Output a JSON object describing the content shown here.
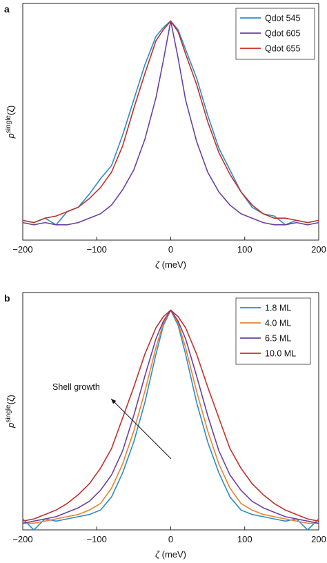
{
  "chart_data": [
    {
      "panel_label": "a",
      "type": "line",
      "xlabel_symbol": "ζ",
      "xlabel_unit": " (meV)",
      "ylabel_base": "p",
      "ylabel_sup": "single",
      "ylabel_arg": "(ζ)",
      "xlim": [
        -200,
        200
      ],
      "ylim": [
        0,
        1.08
      ],
      "xticks": [
        -200,
        -100,
        0,
        100,
        200
      ],
      "xtick_labels": [
        "−200",
        "−100",
        "0",
        "100",
        "200"
      ],
      "legend_position": "top-right",
      "x": [
        -200,
        -185,
        -170,
        -155,
        -140,
        -125,
        -110,
        -95,
        -80,
        -65,
        -50,
        -35,
        -20,
        -10,
        0,
        10,
        20,
        35,
        50,
        65,
        80,
        95,
        110,
        125,
        140,
        155,
        170,
        185,
        200
      ],
      "series": [
        {
          "name": "Qdot 545",
          "color": "#2b8cc4",
          "values": [
            0.09,
            0.08,
            0.1,
            0.07,
            0.13,
            0.15,
            0.21,
            0.28,
            0.34,
            0.48,
            0.64,
            0.8,
            0.93,
            0.97,
            1.0,
            0.96,
            0.87,
            0.74,
            0.57,
            0.42,
            0.32,
            0.22,
            0.15,
            0.12,
            0.11,
            0.07,
            0.09,
            0.08,
            0.09
          ]
        },
        {
          "name": "Qdot 605",
          "color": "#6a3fa0",
          "values": [
            0.08,
            0.07,
            0.08,
            0.07,
            0.07,
            0.08,
            0.1,
            0.12,
            0.16,
            0.23,
            0.32,
            0.46,
            0.65,
            0.82,
            1.0,
            0.83,
            0.64,
            0.45,
            0.31,
            0.22,
            0.16,
            0.12,
            0.1,
            0.08,
            0.07,
            0.07,
            0.08,
            0.07,
            0.08
          ]
        },
        {
          "name": "Qdot 655",
          "color": "#c0302a",
          "values": [
            0.09,
            0.08,
            0.1,
            0.11,
            0.13,
            0.15,
            0.19,
            0.24,
            0.31,
            0.43,
            0.6,
            0.76,
            0.91,
            0.96,
            1.0,
            0.95,
            0.85,
            0.71,
            0.54,
            0.4,
            0.3,
            0.22,
            0.16,
            0.12,
            0.1,
            0.1,
            0.09,
            0.08,
            0.09
          ]
        }
      ]
    },
    {
      "panel_label": "b",
      "type": "line",
      "xlabel_symbol": "ζ",
      "xlabel_unit": " (meV)",
      "ylabel_base": "p",
      "ylabel_sup": "single",
      "ylabel_arg": "(ζ)",
      "xlim": [
        -200,
        200
      ],
      "ylim": [
        0,
        1.08
      ],
      "xticks": [
        -200,
        -100,
        0,
        100,
        200
      ],
      "xtick_labels": [
        "−200",
        "−100",
        "0",
        "100",
        "200"
      ],
      "legend_position": "top-right",
      "annotation": {
        "text": "Shell growth"
      },
      "x": [
        -200,
        -185,
        -170,
        -155,
        -140,
        -125,
        -110,
        -95,
        -80,
        -65,
        -50,
        -35,
        -20,
        -10,
        0,
        10,
        20,
        35,
        50,
        65,
        80,
        95,
        110,
        125,
        140,
        155,
        170,
        185,
        200
      ],
      "series": [
        {
          "name": "1.8 ML",
          "color": "#2b8cc4",
          "values": [
            0.05,
            0.0,
            0.05,
            0.04,
            0.05,
            0.06,
            0.07,
            0.09,
            0.15,
            0.26,
            0.4,
            0.58,
            0.8,
            0.93,
            1.0,
            0.93,
            0.8,
            0.58,
            0.4,
            0.26,
            0.15,
            0.09,
            0.07,
            0.06,
            0.05,
            0.04,
            0.05,
            0.0,
            0.05
          ]
        },
        {
          "name": "4.0 ML",
          "color": "#e8822a",
          "values": [
            0.03,
            0.03,
            0.04,
            0.05,
            0.06,
            0.07,
            0.09,
            0.12,
            0.19,
            0.3,
            0.45,
            0.63,
            0.83,
            0.94,
            1.0,
            0.94,
            0.83,
            0.63,
            0.45,
            0.3,
            0.19,
            0.12,
            0.09,
            0.07,
            0.06,
            0.05,
            0.04,
            0.03,
            0.03
          ]
        },
        {
          "name": "6.5 ML",
          "color": "#6a3fa0",
          "values": [
            0.03,
            0.04,
            0.05,
            0.06,
            0.08,
            0.1,
            0.13,
            0.18,
            0.25,
            0.36,
            0.52,
            0.7,
            0.87,
            0.95,
            1.0,
            0.95,
            0.87,
            0.7,
            0.52,
            0.36,
            0.25,
            0.18,
            0.13,
            0.1,
            0.08,
            0.06,
            0.05,
            0.04,
            0.03
          ]
        },
        {
          "name": "10.0 ML",
          "color": "#c0302a",
          "values": [
            0.04,
            0.05,
            0.07,
            0.09,
            0.12,
            0.16,
            0.21,
            0.28,
            0.37,
            0.51,
            0.65,
            0.8,
            0.92,
            0.97,
            1.0,
            0.97,
            0.92,
            0.8,
            0.65,
            0.51,
            0.37,
            0.28,
            0.21,
            0.16,
            0.12,
            0.09,
            0.07,
            0.05,
            0.04
          ]
        }
      ]
    }
  ]
}
